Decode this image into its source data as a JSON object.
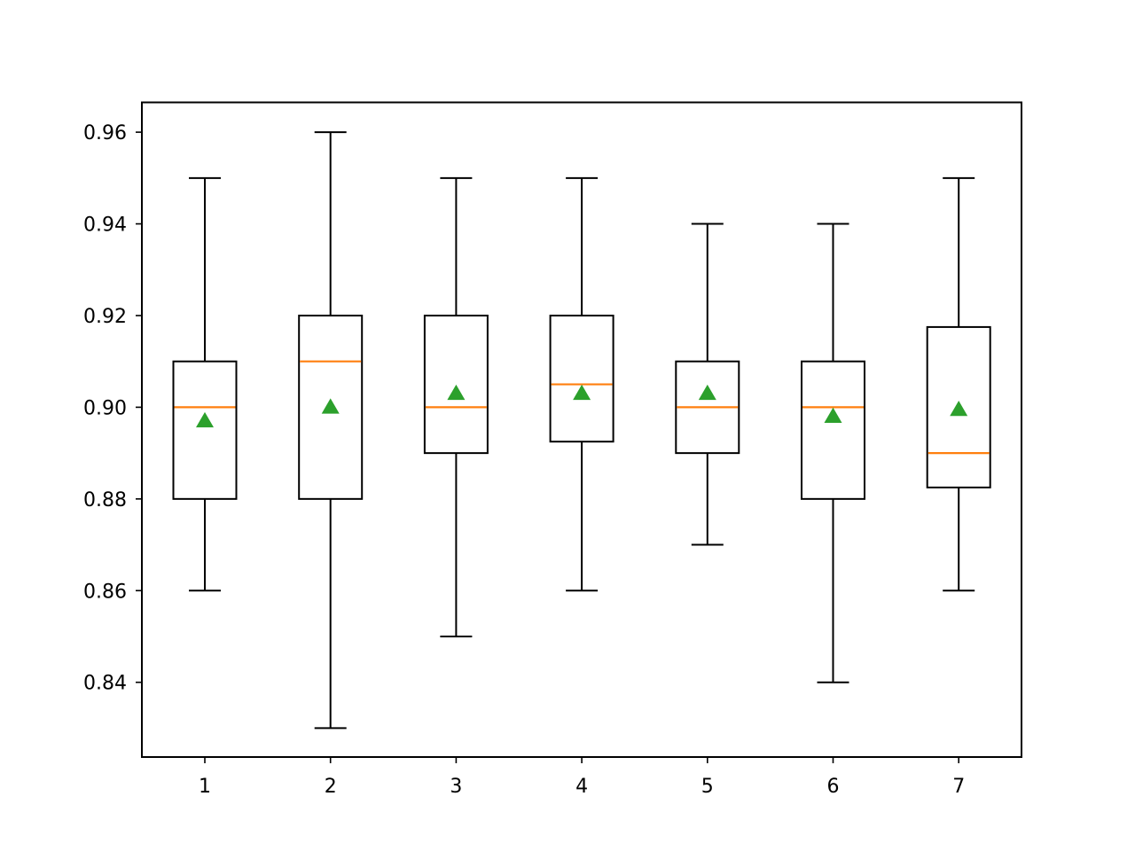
{
  "chart_data": {
    "type": "box",
    "title": "",
    "xlabel": "",
    "ylabel": "",
    "categories": [
      "1",
      "2",
      "3",
      "4",
      "5",
      "6",
      "7"
    ],
    "ylim": [
      0.8237,
      0.9665
    ],
    "yticks": [
      0.84,
      0.86,
      0.88,
      0.9,
      0.92,
      0.94,
      0.96
    ],
    "ytick_labels": [
      "0.84",
      "0.86",
      "0.88",
      "0.90",
      "0.92",
      "0.94",
      "0.96"
    ],
    "boxes": [
      {
        "category": "1",
        "whisker_low": 0.86,
        "q1": 0.88,
        "median": 0.9,
        "q3": 0.91,
        "whisker_high": 0.95,
        "mean": 0.897
      },
      {
        "category": "2",
        "whisker_low": 0.83,
        "q1": 0.88,
        "median": 0.91,
        "q3": 0.92,
        "whisker_high": 0.96,
        "mean": 0.9
      },
      {
        "category": "3",
        "whisker_low": 0.85,
        "q1": 0.89,
        "median": 0.9,
        "q3": 0.92,
        "whisker_high": 0.95,
        "mean": 0.903
      },
      {
        "category": "4",
        "whisker_low": 0.86,
        "q1": 0.8925,
        "median": 0.905,
        "q3": 0.92,
        "whisker_high": 0.95,
        "mean": 0.903
      },
      {
        "category": "5",
        "whisker_low": 0.87,
        "q1": 0.89,
        "median": 0.9,
        "q3": 0.91,
        "whisker_high": 0.94,
        "mean": 0.903
      },
      {
        "category": "6",
        "whisker_low": 0.84,
        "q1": 0.88,
        "median": 0.9,
        "q3": 0.91,
        "whisker_high": 0.94,
        "mean": 0.898
      },
      {
        "category": "7",
        "whisker_low": 0.86,
        "q1": 0.8825,
        "median": 0.89,
        "q3": 0.9175,
        "whisker_high": 0.95,
        "mean": 0.8995
      }
    ],
    "grid": false,
    "legend": "none",
    "colors": {
      "box": "#000000",
      "median": "#ff7f0e",
      "mean_marker": "#2ca02c"
    }
  }
}
